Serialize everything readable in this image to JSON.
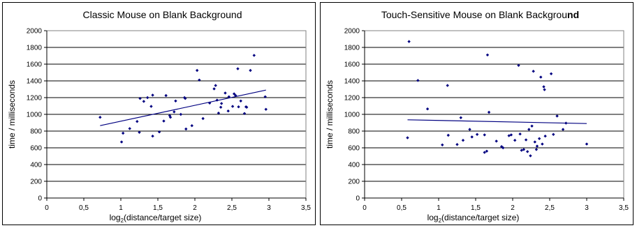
{
  "chart_data": [
    {
      "type": "scatter",
      "title": "Classic Mouse on Blank Background",
      "title_parts": [
        {
          "text": "Classic Mouse on Blank Background",
          "bold": false
        }
      ],
      "xlabel_main": "log",
      "xlabel_sub": "2",
      "xlabel_rest": "(distance/target size)",
      "ylabel": "time / milliseconds",
      "xlim": [
        0,
        3.5
      ],
      "ylim": [
        0,
        2000
      ],
      "x_ticks": [
        0,
        0.5,
        1,
        1.5,
        2,
        2.5,
        3,
        3.5
      ],
      "x_tick_labels": [
        "0",
        "0,5",
        "1",
        "1,5",
        "2",
        "2,5",
        "3",
        "3,5"
      ],
      "y_ticks": [
        0,
        200,
        400,
        600,
        800,
        1000,
        1200,
        1400,
        1600,
        1800,
        2000
      ],
      "y_tick_labels": [
        "0",
        "200",
        "400",
        "600",
        "800",
        "1000",
        "1200",
        "1400",
        "1600",
        "1800",
        "2000"
      ],
      "grid": true,
      "marker_color": "#000080",
      "trend_color": "#000080",
      "trendline": {
        "x": [
          0.72,
          2.96
        ],
        "y": [
          865,
          1290
        ]
      },
      "points": [
        {
          "x": 0.72,
          "y": 965
        },
        {
          "x": 1.01,
          "y": 670
        },
        {
          "x": 1.03,
          "y": 775
        },
        {
          "x": 1.12,
          "y": 830
        },
        {
          "x": 1.22,
          "y": 915
        },
        {
          "x": 1.25,
          "y": 785
        },
        {
          "x": 1.26,
          "y": 1190
        },
        {
          "x": 1.31,
          "y": 1155
        },
        {
          "x": 1.36,
          "y": 1200
        },
        {
          "x": 1.41,
          "y": 1095
        },
        {
          "x": 1.43,
          "y": 1230
        },
        {
          "x": 1.43,
          "y": 740
        },
        {
          "x": 1.52,
          "y": 790
        },
        {
          "x": 1.58,
          "y": 920
        },
        {
          "x": 1.61,
          "y": 1225
        },
        {
          "x": 1.66,
          "y": 985
        },
        {
          "x": 1.67,
          "y": 965
        },
        {
          "x": 1.72,
          "y": 1030
        },
        {
          "x": 1.74,
          "y": 1160
        },
        {
          "x": 1.81,
          "y": 1000
        },
        {
          "x": 1.86,
          "y": 1200
        },
        {
          "x": 1.87,
          "y": 1190
        },
        {
          "x": 1.88,
          "y": 825
        },
        {
          "x": 1.96,
          "y": 865
        },
        {
          "x": 2.03,
          "y": 1525
        },
        {
          "x": 2.06,
          "y": 1410
        },
        {
          "x": 2.11,
          "y": 950
        },
        {
          "x": 2.2,
          "y": 1135
        },
        {
          "x": 2.26,
          "y": 1305
        },
        {
          "x": 2.28,
          "y": 1345
        },
        {
          "x": 2.3,
          "y": 1170
        },
        {
          "x": 2.32,
          "y": 1015
        },
        {
          "x": 2.35,
          "y": 1085
        },
        {
          "x": 2.36,
          "y": 1130
        },
        {
          "x": 2.41,
          "y": 1255
        },
        {
          "x": 2.45,
          "y": 1040
        },
        {
          "x": 2.46,
          "y": 1210
        },
        {
          "x": 2.51,
          "y": 1095
        },
        {
          "x": 2.53,
          "y": 1245
        },
        {
          "x": 2.55,
          "y": 1225
        },
        {
          "x": 2.58,
          "y": 1545
        },
        {
          "x": 2.59,
          "y": 1090
        },
        {
          "x": 2.62,
          "y": 1160
        },
        {
          "x": 2.67,
          "y": 1010
        },
        {
          "x": 2.69,
          "y": 1090
        },
        {
          "x": 2.7,
          "y": 1085
        },
        {
          "x": 2.75,
          "y": 1525
        },
        {
          "x": 2.8,
          "y": 1705
        },
        {
          "x": 2.95,
          "y": 1210
        },
        {
          "x": 2.96,
          "y": 1060
        }
      ]
    },
    {
      "type": "scatter",
      "title": "Touch-Sensitive Mouse on Blank Background",
      "title_parts": [
        {
          "text": "Touch-Sensitive Mouse on Blank Backgrou",
          "bold": false
        },
        {
          "text": "nd",
          "bold": true
        }
      ],
      "xlabel_main": "log",
      "xlabel_sub": "2",
      "xlabel_rest": "(distance/target size)",
      "ylabel": "time / milliseconds",
      "xlim": [
        0,
        3.5
      ],
      "ylim": [
        0,
        2000
      ],
      "x_ticks": [
        0,
        0.5,
        1,
        1.5,
        2,
        2.5,
        3,
        3.5
      ],
      "x_tick_labels": [
        "0",
        "0,5",
        "1",
        "1,5",
        "2",
        "2,5",
        "3",
        "3,5"
      ],
      "y_ticks": [
        0,
        200,
        400,
        600,
        800,
        1000,
        1200,
        1400,
        1600,
        1800,
        2000
      ],
      "y_tick_labels": [
        "0",
        "200",
        "400",
        "600",
        "800",
        "1000",
        "1200",
        "1400",
        "1600",
        "1800",
        "2000"
      ],
      "grid": true,
      "marker_color": "#000080",
      "trend_color": "#000080",
      "trendline": {
        "x": [
          0.58,
          3.0
        ],
        "y": [
          935,
          890
        ]
      },
      "points": [
        {
          "x": 0.6,
          "y": 1870
        },
        {
          "x": 0.58,
          "y": 720
        },
        {
          "x": 0.72,
          "y": 1405
        },
        {
          "x": 0.85,
          "y": 1065
        },
        {
          "x": 1.05,
          "y": 635
        },
        {
          "x": 1.12,
          "y": 1345
        },
        {
          "x": 1.13,
          "y": 750
        },
        {
          "x": 1.25,
          "y": 640
        },
        {
          "x": 1.3,
          "y": 960
        },
        {
          "x": 1.33,
          "y": 690
        },
        {
          "x": 1.42,
          "y": 820
        },
        {
          "x": 1.45,
          "y": 730
        },
        {
          "x": 1.52,
          "y": 760
        },
        {
          "x": 1.62,
          "y": 545
        },
        {
          "x": 1.62,
          "y": 755
        },
        {
          "x": 1.65,
          "y": 560
        },
        {
          "x": 1.66,
          "y": 1710
        },
        {
          "x": 1.68,
          "y": 1025
        },
        {
          "x": 1.78,
          "y": 680
        },
        {
          "x": 1.85,
          "y": 615
        },
        {
          "x": 1.87,
          "y": 600
        },
        {
          "x": 1.95,
          "y": 745
        },
        {
          "x": 1.98,
          "y": 755
        },
        {
          "x": 2.03,
          "y": 690
        },
        {
          "x": 2.08,
          "y": 1585
        },
        {
          "x": 2.1,
          "y": 765
        },
        {
          "x": 2.12,
          "y": 570
        },
        {
          "x": 2.15,
          "y": 580
        },
        {
          "x": 2.18,
          "y": 695
        },
        {
          "x": 2.2,
          "y": 555
        },
        {
          "x": 2.22,
          "y": 820
        },
        {
          "x": 2.24,
          "y": 505
        },
        {
          "x": 2.26,
          "y": 860
        },
        {
          "x": 2.28,
          "y": 1515
        },
        {
          "x": 2.3,
          "y": 670
        },
        {
          "x": 2.32,
          "y": 580
        },
        {
          "x": 2.33,
          "y": 620
        },
        {
          "x": 2.36,
          "y": 710
        },
        {
          "x": 2.38,
          "y": 1445
        },
        {
          "x": 2.4,
          "y": 645
        },
        {
          "x": 2.42,
          "y": 1330
        },
        {
          "x": 2.43,
          "y": 1295
        },
        {
          "x": 2.44,
          "y": 740
        },
        {
          "x": 2.52,
          "y": 1485
        },
        {
          "x": 2.55,
          "y": 760
        },
        {
          "x": 2.6,
          "y": 980
        },
        {
          "x": 2.68,
          "y": 820
        },
        {
          "x": 2.72,
          "y": 895
        },
        {
          "x": 3.0,
          "y": 645
        }
      ]
    }
  ]
}
